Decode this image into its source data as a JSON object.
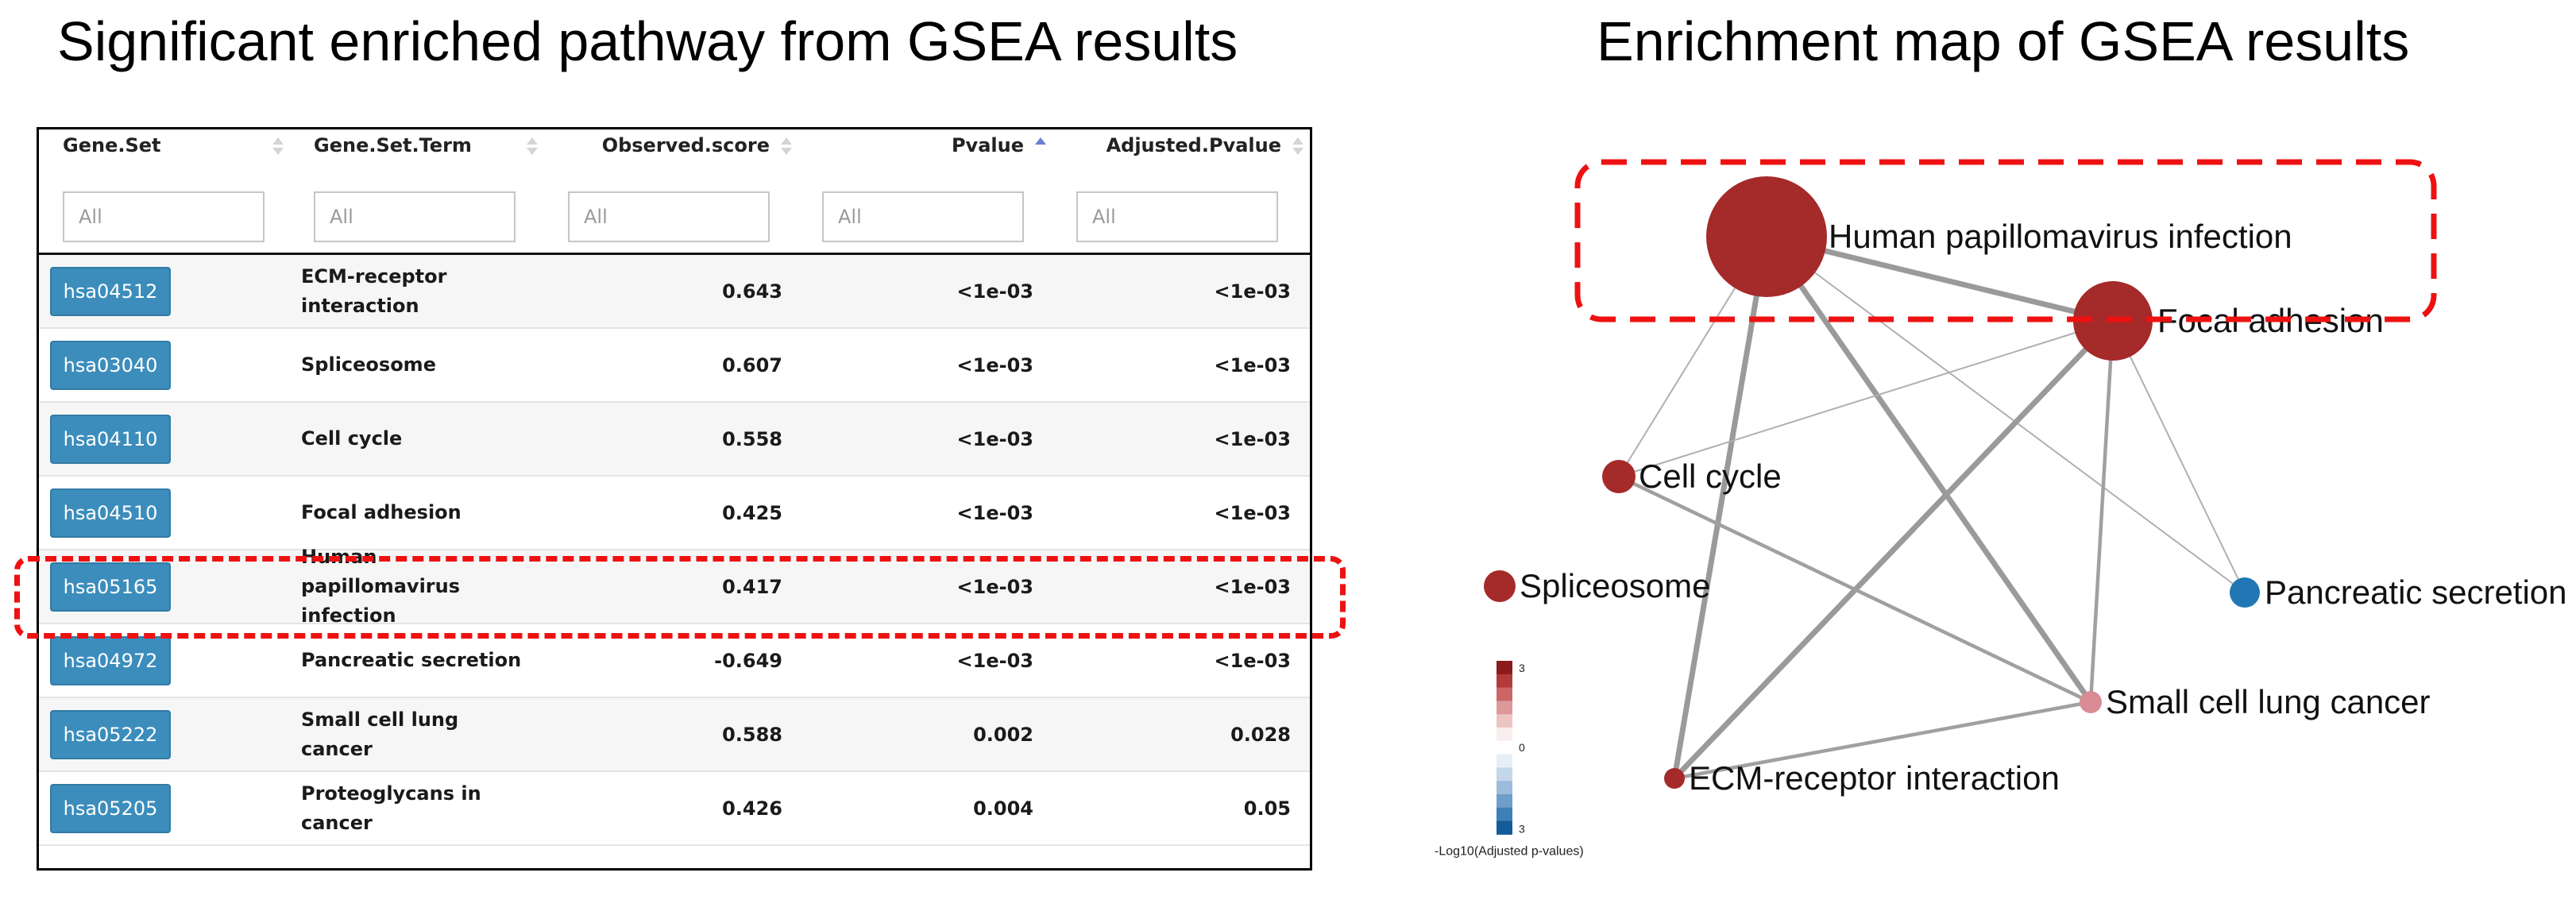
{
  "titles": {
    "left": "Significant enriched pathway from GSEA results",
    "right": "Enrichment map of GSEA results"
  },
  "table": {
    "columns": [
      {
        "label": "Gene.Set",
        "sort": "none"
      },
      {
        "label": "Gene.Set.Term",
        "sort": "none"
      },
      {
        "label": "Observed.score",
        "sort": "none"
      },
      {
        "label": "Pvalue",
        "sort": "asc"
      },
      {
        "label": "Adjusted.Pvalue",
        "sort": "none"
      }
    ],
    "filters": [
      {
        "placeholder": "All"
      },
      {
        "placeholder": "All"
      },
      {
        "placeholder": "All"
      },
      {
        "placeholder": "All"
      },
      {
        "placeholder": "All"
      }
    ],
    "rows": [
      {
        "id": "hsa04512",
        "term_lines": [
          "ECM-receptor",
          "interaction"
        ],
        "score": "0.643",
        "pvalue": "<1e-03",
        "adj_pvalue": "<1e-03"
      },
      {
        "id": "hsa03040",
        "term_lines": [
          "Spliceosome"
        ],
        "score": "0.607",
        "pvalue": "<1e-03",
        "adj_pvalue": "<1e-03"
      },
      {
        "id": "hsa04110",
        "term_lines": [
          "Cell cycle"
        ],
        "score": "0.558",
        "pvalue": "<1e-03",
        "adj_pvalue": "<1e-03"
      },
      {
        "id": "hsa04510",
        "term_lines": [
          "Focal adhesion"
        ],
        "score": "0.425",
        "pvalue": "<1e-03",
        "adj_pvalue": "<1e-03"
      },
      {
        "id": "hsa05165",
        "term_lines": [
          "Human papillomavirus",
          "infection"
        ],
        "score": "0.417",
        "pvalue": "<1e-03",
        "adj_pvalue": "<1e-03"
      },
      {
        "id": "hsa04972",
        "term_lines": [
          "Pancreatic secretion"
        ],
        "score": "-0.649",
        "pvalue": "<1e-03",
        "adj_pvalue": "<1e-03"
      },
      {
        "id": "hsa05222",
        "term_lines": [
          "Small cell lung cancer"
        ],
        "score": "0.588",
        "pvalue": "0.002",
        "adj_pvalue": "0.028"
      },
      {
        "id": "hsa05205",
        "term_lines": [
          "Proteoglycans in",
          "cancer"
        ],
        "score": "0.426",
        "pvalue": "0.004",
        "adj_pvalue": "0.05"
      }
    ],
    "highlighted_row": 4
  },
  "network": {
    "nodes": [
      {
        "id": "hpv",
        "label": "Human papillomavirus infection",
        "color": "#a52a2a"
      },
      {
        "id": "focal",
        "label": "Focal adhesion",
        "color": "#a52a2a"
      },
      {
        "id": "cellcycle",
        "label": "Cell cycle",
        "color": "#a52a2a"
      },
      {
        "id": "splice",
        "label": "Spliceosome",
        "color": "#a52a2a"
      },
      {
        "id": "pancreatic",
        "label": "Pancreatic secretion",
        "color": "#2077b4"
      },
      {
        "id": "sclc",
        "label": "Small cell lung cancer",
        "color": "#d98b94"
      },
      {
        "id": "ecm",
        "label": "ECM-receptor interaction",
        "color": "#a52a2a"
      }
    ],
    "edges": [
      {
        "source": "hpv",
        "target": "focal",
        "weight": "strong"
      },
      {
        "source": "hpv",
        "target": "cellcycle",
        "weight": "weak"
      },
      {
        "source": "hpv",
        "target": "ecm",
        "weight": "strong"
      },
      {
        "source": "hpv",
        "target": "sclc",
        "weight": "strong"
      },
      {
        "source": "hpv",
        "target": "pancreatic",
        "weight": "weak"
      },
      {
        "source": "focal",
        "target": "cellcycle",
        "weight": "weak"
      },
      {
        "source": "focal",
        "target": "ecm",
        "weight": "strong"
      },
      {
        "source": "focal",
        "target": "sclc",
        "weight": "medium"
      },
      {
        "source": "focal",
        "target": "pancreatic",
        "weight": "weak"
      },
      {
        "source": "cellcycle",
        "target": "sclc",
        "weight": "medium"
      },
      {
        "source": "ecm",
        "target": "sclc",
        "weight": "medium"
      }
    ],
    "legend": {
      "title": "-Log10(Adjusted p-values)",
      "tick_top": "3",
      "tick_mid": "0",
      "tick_bottom": "3",
      "colors": [
        "#8b1a1a",
        "#b23a3a",
        "#cc6666",
        "#dd9999",
        "#ecc4c4",
        "#f8eeee",
        "#ffffff",
        "#e6eef7",
        "#c4d7ea",
        "#9dbcdb",
        "#6e9ec9",
        "#3d7fb6",
        "#135c99"
      ]
    }
  }
}
